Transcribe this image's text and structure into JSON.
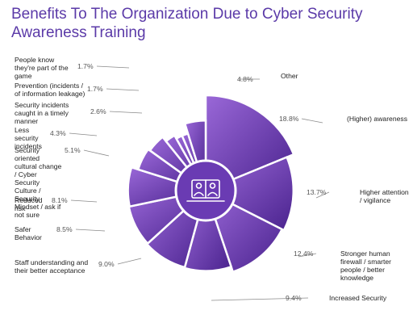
{
  "title": "Benefits To The Organization Due to Cyber Security Awareness Training",
  "colors": {
    "accent": "#6a3bb3",
    "slice_light": "#8d5ccf",
    "slice_dark": "#4a238e",
    "title": "#5b3aa8"
  },
  "icon": "video-conference-icon",
  "chart_data": {
    "type": "pie",
    "style": "polar-area donut",
    "title": "Benefits To The Organization Due to Cyber Security Awareness Training",
    "unit": "%",
    "slices": [
      {
        "label": "(Higher) awareness",
        "value": 18.8,
        "display": "18.8%"
      },
      {
        "label": "Higher attention / vigilance",
        "value": 13.7,
        "display": "13.7%"
      },
      {
        "label": "Stronger human firewall / smarter people / better knowledge",
        "value": 12.4,
        "display": "12.4%"
      },
      {
        "label": "Increased Security",
        "value": 9.4,
        "display": "9.4%"
      },
      {
        "label": "Staff understanding and their better acceptance",
        "value": 9.0,
        "display": "9.0%"
      },
      {
        "label": "Safer Behavior",
        "value": 8.5,
        "display": "8.5%"
      },
      {
        "label": "Reduced risk",
        "value": 8.1,
        "display": "8.1%"
      },
      {
        "label": "Security oriented cultural change / Cyber Security Culture / Security Mindset / ask if not sure",
        "value": 5.1,
        "display": "5.1%"
      },
      {
        "label": "Less security incidents",
        "value": 4.3,
        "display": "4.3%"
      },
      {
        "label": "Security incidents caught in a timely manner",
        "value": 2.6,
        "display": "2.6%"
      },
      {
        "label": "Prevention (incidents / of information leakage)",
        "value": 1.7,
        "display": "1.7%"
      },
      {
        "label": "People know they're part of the game",
        "value": 1.7,
        "display": "1.7%"
      },
      {
        "label": "Other",
        "value": 4.8,
        "display": "4.8%"
      }
    ]
  }
}
